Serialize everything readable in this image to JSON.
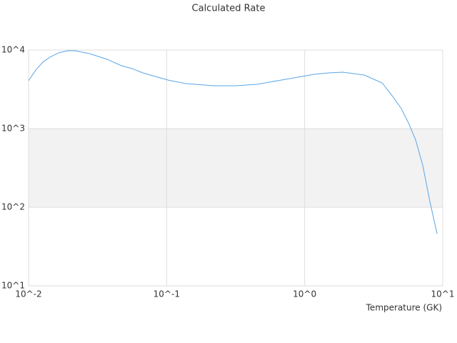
{
  "chart_data": {
    "type": "line",
    "title": "Calculated Rate",
    "x_label": "Temperature (GK)",
    "log_x": true,
    "log_y": true,
    "grid": true,
    "alternate_bands": true,
    "x": [
      0.01,
      0.01127,
      0.01268,
      0.01429,
      0.01648,
      0.01928,
      0.02168,
      0.02754,
      0.03707,
      0.0471,
      0.05623,
      0.0673,
      0.1021,
      0.1374,
      0.2213,
      0.3162,
      0.4519,
      0.7278,
      1.172,
      1.486,
      1.888,
      2.698,
      3.639,
      4.345,
      5.012,
      5.649,
      6.368,
      7.178,
      8.072,
      9.099
    ],
    "series": [
      {
        "color": "#5aa5e6",
        "values": [
          4074,
          5560,
          7000,
          8110,
          9200,
          9790,
          9790,
          9016,
          7621,
          6310,
          5808,
          5117,
          4150,
          3741,
          3508,
          3508,
          3664,
          4236,
          4909,
          5117,
          5224,
          4808,
          3819,
          2564,
          1799,
          1183,
          716,
          336.5,
          118.3,
          46.1
        ]
      }
    ],
    "xlim": [
      0.01,
      10
    ],
    "xticks": [
      {
        "value": 0.01,
        "label": "10^-2"
      },
      {
        "value": 0.1,
        "label": "10^-1"
      },
      {
        "value": 1,
        "label": "10^0"
      },
      {
        "value": 10,
        "label": "10^1"
      }
    ],
    "ylim": [
      10,
      10000
    ],
    "yticks": [
      {
        "value": 10,
        "label": "10^1"
      },
      {
        "value": 100,
        "label": "10^2"
      },
      {
        "value": 1000,
        "label": "10^3"
      },
      {
        "value": 10000,
        "label": "10^4"
      }
    ]
  }
}
